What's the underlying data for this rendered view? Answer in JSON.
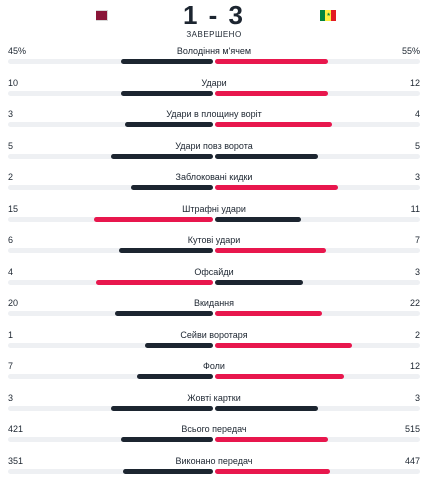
{
  "match": {
    "home_team": "Qatar",
    "away_team": "Senegal",
    "score": "1 - 3",
    "status": "ЗАВЕРШЕНО"
  },
  "colors": {
    "home_bar": "#1c2530",
    "away_bar": "#e8174d",
    "track": "#eef0f3",
    "qatar_maroon": "#8a1538",
    "senegal_green": "#00853f",
    "senegal_yellow": "#fdef42",
    "senegal_red": "#e31b23"
  },
  "stats": [
    {
      "label": "Володіння м'ячем",
      "home": "45%",
      "away": "55%",
      "home_share": 0.45,
      "away_share": 0.55,
      "leader": "away"
    },
    {
      "label": "Удари",
      "home": "10",
      "away": "12",
      "home_share": 0.45,
      "away_share": 0.55,
      "leader": "away"
    },
    {
      "label": "Удари в площину воріт",
      "home": "3",
      "away": "4",
      "home_share": 0.43,
      "away_share": 0.57,
      "leader": "away"
    },
    {
      "label": "Удари повз ворота",
      "home": "5",
      "away": "5",
      "home_share": 0.5,
      "away_share": 0.5,
      "leader": "none"
    },
    {
      "label": "Заблоковані кидки",
      "home": "2",
      "away": "3",
      "home_share": 0.4,
      "away_share": 0.6,
      "leader": "away"
    },
    {
      "label": "Штрафні удари",
      "home": "15",
      "away": "11",
      "home_share": 0.58,
      "away_share": 0.42,
      "leader": "home"
    },
    {
      "label": "Кутові удари",
      "home": "6",
      "away": "7",
      "home_share": 0.46,
      "away_share": 0.54,
      "leader": "away"
    },
    {
      "label": "Офсайди",
      "home": "4",
      "away": "3",
      "home_share": 0.57,
      "away_share": 0.43,
      "leader": "home"
    },
    {
      "label": "Вкидання",
      "home": "20",
      "away": "22",
      "home_share": 0.48,
      "away_share": 0.52,
      "leader": "away"
    },
    {
      "label": "Сейви воротаря",
      "home": "1",
      "away": "2",
      "home_share": 0.33,
      "away_share": 0.67,
      "leader": "away"
    },
    {
      "label": "Фоли",
      "home": "7",
      "away": "12",
      "home_share": 0.37,
      "away_share": 0.63,
      "leader": "away"
    },
    {
      "label": "Жовті картки",
      "home": "3",
      "away": "3",
      "home_share": 0.5,
      "away_share": 0.5,
      "leader": "none"
    },
    {
      "label": "Всього передач",
      "home": "421",
      "away": "515",
      "home_share": 0.45,
      "away_share": 0.55,
      "leader": "away"
    },
    {
      "label": "Виконано передач",
      "home": "351",
      "away": "447",
      "home_share": 0.44,
      "away_share": 0.56,
      "leader": "away"
    }
  ]
}
